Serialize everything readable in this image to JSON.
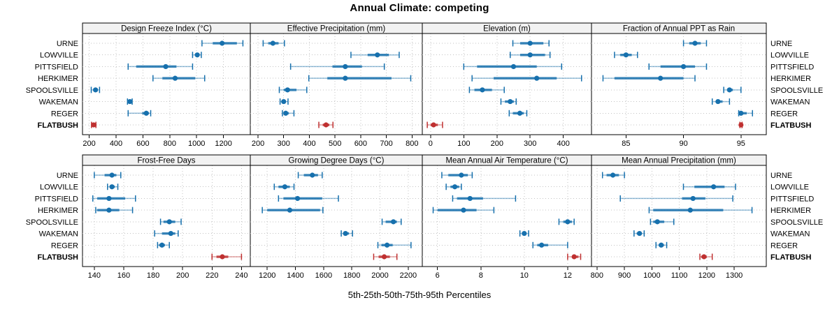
{
  "colors": {
    "series": "#1670ad",
    "highlight": "#bf3030",
    "strip_bg": "#f2f2f2",
    "panel_bg": "#ffffff",
    "grid": "#c3c3c3",
    "border": "#000000"
  },
  "chart_data": {
    "type": "dotplot",
    "title": "Annual Climate: competing",
    "caption": "5th-25th-50th-75th-95th Percentiles",
    "percentile_labels": [
      "5th",
      "25th",
      "50th",
      "75th",
      "95th"
    ],
    "locations": [
      "URNE",
      "LOWVILLE",
      "PITTSFIELD",
      "HERKIMER",
      "SPOOLSVILLE",
      "WAKEMAN",
      "REGER",
      "FLATBUSH"
    ],
    "highlight_location": "FLATBUSH",
    "legend_position": "none",
    "grid": "dotted",
    "panels": [
      {
        "title": "Design Freeze Index (°C)",
        "xlim": [
          150,
          1400
        ],
        "ticks": [
          200,
          400,
          600,
          800,
          1000,
          1200
        ],
        "values": {
          "URNE": [
            1040,
            1120,
            1190,
            1300,
            1345
          ],
          "LOWVILLE": [
            970,
            990,
            1005,
            1020,
            1035
          ],
          "PITTSFIELD": [
            490,
            550,
            770,
            850,
            970
          ],
          "HERKIMER": [
            675,
            745,
            840,
            990,
            1060
          ],
          "SPOOLSVILLE": [
            215,
            235,
            247,
            262,
            277
          ],
          "WAKEMAN": [
            485,
            495,
            503,
            512,
            520
          ],
          "REGER": [
            490,
            595,
            625,
            645,
            658
          ],
          "FLATBUSH": [
            217,
            226,
            233,
            242,
            250
          ]
        }
      },
      {
        "title": "Effective Precipitation (mm)",
        "xlim": [
          170,
          840
        ],
        "ticks": [
          200,
          300,
          400,
          500,
          600,
          700,
          800
        ],
        "values": {
          "URNE": [
            220,
            240,
            258,
            280,
            303
          ],
          "LOWVILLE": [
            562,
            627,
            665,
            710,
            750
          ],
          "PITTSFIELD": [
            327,
            490,
            540,
            605,
            692
          ],
          "HERKIMER": [
            398,
            470,
            540,
            720,
            795
          ],
          "SPOOLSVILLE": [
            283,
            300,
            315,
            350,
            390
          ],
          "WAKEMAN": [
            286,
            293,
            300,
            308,
            317
          ],
          "REGER": [
            295,
            302,
            308,
            320,
            340
          ],
          "FLATBUSH": [
            437,
            452,
            465,
            478,
            492
          ]
        }
      },
      {
        "title": "Elevation (m)",
        "xlim": [
          -25,
          485
        ],
        "ticks": [
          0,
          100,
          200,
          300,
          400
        ],
        "values": {
          "URNE": [
            248,
            270,
            300,
            340,
            357
          ],
          "LOWVILLE": [
            240,
            270,
            300,
            345,
            360
          ],
          "PITTSFIELD": [
            100,
            140,
            250,
            320,
            395
          ],
          "HERKIMER": [
            125,
            190,
            320,
            380,
            455
          ],
          "SPOOLSVILLE": [
            117,
            132,
            156,
            185,
            222
          ],
          "WAKEMAN": [
            212,
            224,
            240,
            251,
            258
          ],
          "REGER": [
            237,
            248,
            269,
            281,
            290
          ],
          "FLATBUSH": [
            -10,
            0,
            9,
            22,
            36
          ]
        }
      },
      {
        "title": "Fraction of Annual PPT as Rain",
        "xlim": [
          82,
          97.2
        ],
        "ticks": [
          85,
          90,
          95
        ],
        "values": {
          "URNE": [
            90,
            90.5,
            91,
            91.5,
            92
          ],
          "LOWVILLE": [
            84,
            84.5,
            85,
            85.5,
            86
          ],
          "PITTSFIELD": [
            87,
            88,
            90,
            91,
            92
          ],
          "HERKIMER": [
            83,
            84,
            88,
            90,
            91
          ],
          "SPOOLSVILLE": [
            93.5,
            93.8,
            94,
            94.3,
            95
          ],
          "WAKEMAN": [
            92.5,
            92.8,
            93,
            93.4,
            94
          ],
          "REGER": [
            94.8,
            94.9,
            95,
            95.5,
            96
          ],
          "FLATBUSH": [
            94.9,
            95,
            95,
            95,
            95.1
          ]
        }
      },
      {
        "title": "Frost-Free Days",
        "xlim": [
          132,
          246
        ],
        "ticks": [
          140,
          160,
          180,
          200,
          220,
          240
        ],
        "values": {
          "URNE": [
            140,
            147,
            152,
            155,
            158
          ],
          "LOWVILLE": [
            149,
            151,
            152,
            154,
            156
          ],
          "PITTSFIELD": [
            139,
            142,
            150,
            161,
            168
          ],
          "HERKIMER": [
            141,
            142,
            150,
            157,
            166
          ],
          "SPOOLSVILLE": [
            185,
            187,
            191,
            195,
            199
          ],
          "WAKEMAN": [
            181,
            186,
            192,
            195,
            197
          ],
          "REGER": [
            183,
            184,
            186,
            188,
            191
          ],
          "FLATBUSH": [
            220,
            223,
            227,
            231,
            240
          ]
        }
      },
      {
        "title": "Growing Degree Days (°C)",
        "xlim": [
          1080,
          2300
        ],
        "ticks": [
          1200,
          1400,
          1600,
          1800,
          2000,
          2200
        ],
        "values": {
          "URNE": [
            1420,
            1460,
            1520,
            1560,
            1590
          ],
          "LOWVILLE": [
            1250,
            1280,
            1325,
            1360,
            1390
          ],
          "PITTSFIELD": [
            1280,
            1315,
            1415,
            1590,
            1705
          ],
          "HERKIMER": [
            1165,
            1200,
            1360,
            1575,
            1595
          ],
          "SPOOLSVILLE": [
            2015,
            2040,
            2095,
            2120,
            2150
          ],
          "WAKEMAN": [
            1725,
            1742,
            1755,
            1780,
            1805
          ],
          "REGER": [
            1985,
            2010,
            2050,
            2090,
            2220
          ],
          "FLATBUSH": [
            1955,
            1990,
            2030,
            2070,
            2120
          ]
        }
      },
      {
        "title": "Mean Annual Air Temperature (°C)",
        "xlim": [
          5.3,
          13.1
        ],
        "ticks": [
          6,
          8,
          10,
          12
        ],
        "values": {
          "URNE": [
            6.2,
            6.5,
            7.1,
            7.4,
            7.6
          ],
          "LOWVILLE": [
            6.4,
            6.6,
            6.8,
            7.0,
            7.1
          ],
          "PITTSFIELD": [
            6.7,
            6.9,
            7.5,
            8.1,
            9.6
          ],
          "HERKIMER": [
            5.8,
            6.0,
            7.2,
            7.8,
            8.6
          ],
          "SPOOLSVILLE": [
            11.6,
            11.8,
            12.0,
            12.2,
            12.3
          ],
          "WAKEMAN": [
            9.8,
            9.9,
            10.0,
            10.1,
            10.2
          ],
          "REGER": [
            10.4,
            10.6,
            10.8,
            11.1,
            12.0
          ],
          "FLATBUSH": [
            12.0,
            12.2,
            12.3,
            12.5,
            12.6
          ]
        }
      },
      {
        "title": "Mean Annual Precipitation (mm)",
        "xlim": [
          780,
          1417
        ],
        "ticks": [
          800,
          900,
          1000,
          1100,
          1200,
          1300
        ],
        "values": {
          "URNE": [
            820,
            835,
            858,
            880,
            900
          ],
          "LOWVILLE": [
            1115,
            1155,
            1225,
            1265,
            1305
          ],
          "PITTSFIELD": [
            885,
            1110,
            1150,
            1195,
            1295
          ],
          "HERKIMER": [
            990,
            1005,
            1140,
            1260,
            1365
          ],
          "SPOOLSVILLE": [
            995,
            1005,
            1020,
            1045,
            1080
          ],
          "WAKEMAN": [
            935,
            945,
            955,
            963,
            972
          ],
          "REGER": [
            1015,
            1025,
            1034,
            1044,
            1054
          ],
          "FLATBUSH": [
            1175,
            1180,
            1190,
            1200,
            1220
          ]
        }
      }
    ]
  }
}
